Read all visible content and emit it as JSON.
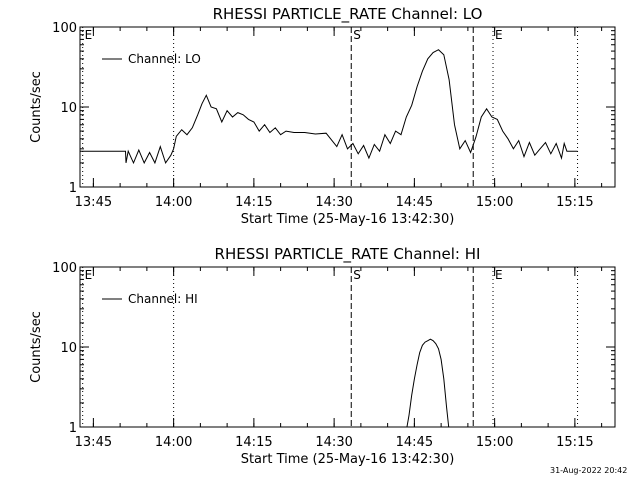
{
  "footer": {
    "timestamp": "31-Aug-2022 20:42"
  },
  "chart_data": [
    {
      "type": "line",
      "title": "RHESSI PARTICLE_RATE Channel: LO",
      "xlabel": "Start Time (25-May-16 13:42:30)",
      "ylabel": "Counts/sec",
      "yscale": "log",
      "ylim": [
        1,
        100
      ],
      "xlim_minutes": [
        0,
        100
      ],
      "xticks": [
        "13:45",
        "14:00",
        "14:15",
        "14:30",
        "14:45",
        "15:00",
        "15:15"
      ],
      "xtick_minutes": [
        2.5,
        17.5,
        32.5,
        47.5,
        62.5,
        77.5,
        92.5
      ],
      "yticks": [
        "1",
        "10",
        "100"
      ],
      "yticks_values": [
        1,
        10,
        100
      ],
      "legend": "Channel: LO",
      "markers": [
        {
          "label": "E",
          "minute": 0.5,
          "style": "dotted"
        },
        {
          "label": "",
          "minute": 17.5,
          "style": "dotted"
        },
        {
          "label": "S",
          "minute": 50.7,
          "style": "dashed"
        },
        {
          "label": "",
          "minute": 73.5,
          "style": "dashed"
        },
        {
          "label": "E",
          "minute": 77.2,
          "style": "dotted"
        },
        {
          "label": "",
          "minute": 93.0,
          "style": "dotted"
        }
      ],
      "series": [
        {
          "name": "Channel: LO",
          "x": [
            0,
            8.5,
            8.6,
            9.0,
            10.0,
            11.0,
            12.0,
            13.0,
            14.0,
            15.0,
            16.0,
            17.0,
            17.5,
            18.0,
            19.0,
            20.0,
            21.0,
            22.0,
            22.8,
            23.6,
            24.5,
            25.5,
            26.5,
            27.5,
            28.5,
            29.5,
            30.5,
            31.5,
            32.5,
            33.5,
            34.5,
            35.5,
            36.5,
            37.5,
            38.5,
            40.0,
            42.0,
            44.0,
            46.0,
            48.0,
            49.0,
            50.0,
            51.0,
            52.0,
            53.0,
            54.0,
            55.0,
            56.0,
            57.0,
            58.0,
            59.0,
            60.0,
            61.0,
            62.0,
            63.0,
            64.0,
            65.0,
            66.0,
            67.0,
            68.0,
            69.0,
            70.0,
            71.0,
            72.0,
            73.0,
            74.0,
            75.0,
            76.0,
            77.0,
            78.0,
            79.0,
            80.0,
            81.0,
            82.0,
            83.0,
            84.0,
            85.0,
            86.0,
            87.0,
            88.0,
            89.0,
            90.0,
            90.5,
            91.0,
            93.0
          ],
          "y": [
            2.8,
            2.8,
            2.0,
            2.8,
            2.0,
            2.9,
            2.0,
            2.7,
            2.0,
            3.2,
            2.0,
            2.5,
            3.0,
            4.3,
            5.2,
            4.5,
            5.5,
            8.0,
            11.0,
            14.0,
            10.0,
            9.5,
            6.5,
            9.0,
            7.5,
            8.5,
            8.0,
            7.0,
            6.5,
            5.0,
            6.0,
            4.8,
            5.5,
            4.5,
            5.0,
            4.8,
            4.8,
            4.6,
            4.7,
            3.2,
            4.5,
            3.0,
            3.5,
            2.6,
            3.3,
            2.3,
            3.4,
            2.8,
            4.5,
            3.5,
            5.0,
            4.5,
            7.5,
            10.5,
            18.0,
            28.0,
            40.0,
            48.0,
            52.0,
            45.0,
            22.0,
            6.0,
            3.0,
            3.8,
            2.7,
            4.2,
            7.5,
            9.5,
            7.5,
            7.0,
            5.0,
            4.0,
            3.0,
            3.8,
            2.4,
            3.6,
            2.5,
            3.0,
            3.6,
            2.6,
            3.5,
            2.3,
            3.5,
            2.8,
            2.8
          ]
        }
      ]
    },
    {
      "type": "line",
      "title": "RHESSI PARTICLE_RATE Channel: HI",
      "xlabel": "Start Time (25-May-16 13:42:30)",
      "ylabel": "Counts/sec",
      "yscale": "log",
      "ylim": [
        1,
        100
      ],
      "xlim_minutes": [
        0,
        100
      ],
      "xticks": [
        "13:45",
        "14:00",
        "14:15",
        "14:30",
        "14:45",
        "15:00",
        "15:15"
      ],
      "xtick_minutes": [
        2.5,
        17.5,
        32.5,
        47.5,
        62.5,
        77.5,
        92.5
      ],
      "yticks": [
        "1",
        "10",
        "100"
      ],
      "yticks_values": [
        1,
        10,
        100
      ],
      "legend": "Channel: HI",
      "markers": [
        {
          "label": "E",
          "minute": 0.5,
          "style": "dotted"
        },
        {
          "label": "",
          "minute": 17.5,
          "style": "dotted"
        },
        {
          "label": "S",
          "minute": 50.7,
          "style": "dashed"
        },
        {
          "label": "",
          "minute": 73.5,
          "style": "dashed"
        },
        {
          "label": "E",
          "minute": 77.2,
          "style": "dotted"
        },
        {
          "label": "",
          "minute": 93.0,
          "style": "dotted"
        }
      ],
      "series": [
        {
          "name": "Channel: HI",
          "x": [
            61.0,
            61.5,
            62.0,
            62.5,
            63.0,
            63.5,
            64.0,
            64.5,
            65.0,
            65.5,
            66.0,
            66.5,
            67.0,
            67.5,
            68.0,
            68.5,
            69.0
          ],
          "y": [
            0.9,
            1.4,
            2.5,
            4.0,
            6.0,
            8.5,
            10.5,
            11.5,
            12.0,
            12.5,
            12.0,
            11.0,
            9.5,
            7.0,
            4.0,
            1.8,
            0.9
          ]
        }
      ]
    }
  ]
}
